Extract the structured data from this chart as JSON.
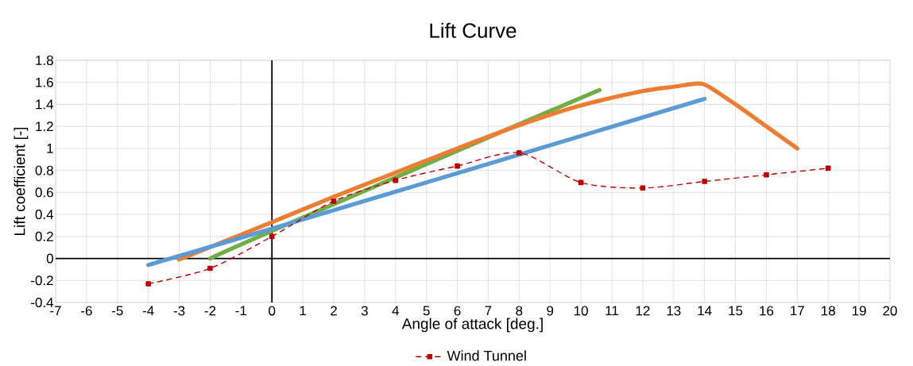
{
  "chart_data": {
    "type": "line",
    "title": "Lift Curve",
    "xlabel": "Angle of attack [deg.]",
    "ylabel": "Lift coefficient [-]",
    "xlim": [
      -7,
      20
    ],
    "xticks": [
      -7,
      -6,
      -5,
      -4,
      -3,
      -2,
      -1,
      0,
      1,
      2,
      3,
      4,
      5,
      6,
      7,
      8,
      9,
      10,
      11,
      12,
      13,
      14,
      15,
      16,
      17,
      18,
      19,
      20
    ],
    "ylim": [
      -0.4,
      1.8
    ],
    "yticks": [
      -0.4,
      -0.2,
      0,
      0.2,
      0.4,
      0.6,
      0.8,
      1,
      1.2,
      1.4,
      1.6,
      1.8
    ],
    "grid": true,
    "legend": "bottom",
    "series": [
      {
        "color": "#70ad47",
        "x": [
          -2,
          0,
          8,
          10.6
        ],
        "values": [
          0,
          0.25,
          1.22,
          1.53
        ]
      },
      {
        "color": "#ed7d31",
        "x": [
          -3,
          0,
          2,
          4,
          6,
          8,
          10,
          12,
          13,
          13.8,
          14.2,
          15,
          16,
          17
        ],
        "values": [
          -0.01,
          0.33,
          0.56,
          0.78,
          1.0,
          1.21,
          1.39,
          1.52,
          1.56,
          1.59,
          1.55,
          1.4,
          1.2,
          1.0
        ]
      },
      {
        "color": "#5b9bd5",
        "x": [
          -4,
          0,
          14
        ],
        "values": [
          -0.06,
          0.27,
          1.45
        ]
      },
      {
        "name": "Wind Tunnel",
        "color": "#c00000",
        "line_style": "dashed",
        "marker": "square",
        "x": [
          -4,
          -2,
          0,
          2,
          4,
          6,
          8,
          10,
          12,
          14,
          16,
          18
        ],
        "values": [
          -0.23,
          -0.09,
          0.2,
          0.52,
          0.71,
          0.84,
          0.96,
          0.69,
          0.64,
          0.7,
          0.76,
          0.82
        ]
      }
    ]
  }
}
